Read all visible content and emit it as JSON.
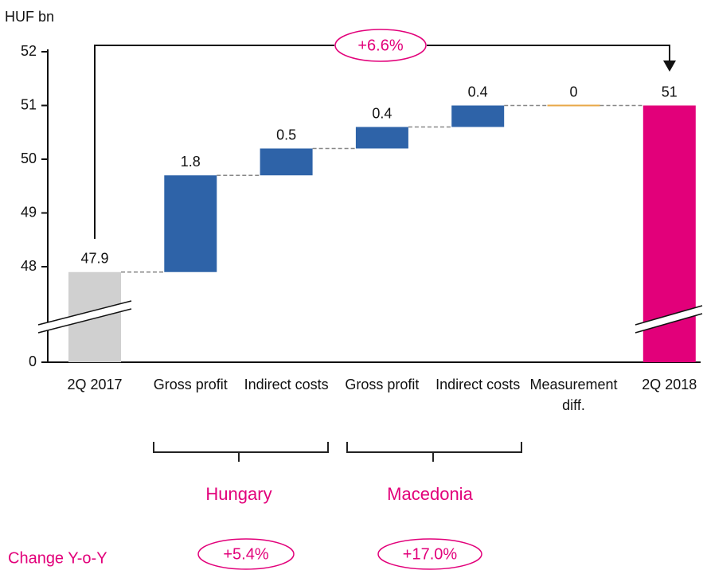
{
  "chart_data": {
    "type": "waterfall",
    "unit_label": "HUF bn",
    "categories": [
      "2Q 2017",
      "Gross profit",
      "Indirect costs",
      "Gross profit",
      "Indirect costs",
      "Measurement diff.",
      "2Q 2018"
    ],
    "values": [
      47.9,
      1.8,
      0.5,
      0.4,
      0.4,
      0.0,
      51.0
    ],
    "kinds": [
      "total",
      "delta",
      "delta",
      "delta",
      "delta",
      "delta",
      "total"
    ],
    "colors": [
      "#d0d0d0",
      "#2e63a8",
      "#2e63a8",
      "#2e63a8",
      "#2e63a8",
      "#e8a848",
      "#e2007a"
    ],
    "ylim": [
      0,
      52
    ],
    "yticks": [
      0,
      48,
      49,
      50,
      51,
      52
    ],
    "axis_break": true,
    "total_change": "+6.6%",
    "groups": [
      {
        "name": "Hungary",
        "change": "+5.4%"
      },
      {
        "name": "Macedonia",
        "change": "+17.0%"
      }
    ],
    "change_label": "Change Y-o-Y"
  }
}
